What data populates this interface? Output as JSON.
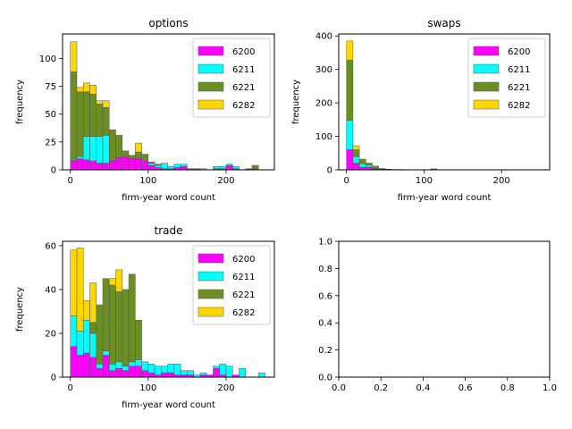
{
  "chart_data": [
    {
      "type": "bar",
      "stacked": true,
      "title": "options",
      "xlabel": "firm-year word count",
      "ylabel": "frequency",
      "xlim": [
        -10,
        262
      ],
      "ylim": [
        0,
        122
      ],
      "xticks": [
        0,
        100,
        200
      ],
      "yticks": [
        0,
        25,
        50,
        75,
        100
      ],
      "bin_width": 8.33,
      "x": [
        4.2,
        12.5,
        20.8,
        29.2,
        37.5,
        45.8,
        54.2,
        62.5,
        70.8,
        79.2,
        87.5,
        95.8,
        104.2,
        112.5,
        120.8,
        129.2,
        137.5,
        145.8,
        154.2,
        162.5,
        170.8,
        179.2,
        187.5,
        195.8,
        204.2,
        212.5,
        220.8,
        229.2,
        237.5,
        245.8
      ],
      "series": [
        {
          "name": "6200",
          "color": "#ff00ff",
          "values": [
            8,
            10,
            9,
            8,
            6,
            6,
            8,
            11,
            12,
            10,
            10,
            8,
            4,
            2,
            1,
            1,
            2,
            3,
            1,
            1,
            0,
            0,
            1,
            1,
            4,
            1,
            0,
            1,
            1,
            0
          ]
        },
        {
          "name": "6211",
          "color": "#00ffff",
          "values": [
            0,
            2,
            21,
            22,
            24,
            25,
            0,
            0,
            0,
            0,
            0,
            0,
            2,
            2,
            5,
            2,
            3,
            2,
            0,
            0,
            1,
            0,
            2,
            2,
            1,
            2,
            0,
            0,
            0,
            0
          ]
        },
        {
          "name": "6221",
          "color": "#6b8e23",
          "values": [
            80,
            58,
            40,
            38,
            29,
            25,
            28,
            20,
            5,
            3,
            6,
            6,
            1,
            1,
            0,
            0,
            0,
            0,
            0,
            0,
            0,
            0,
            0,
            0,
            0,
            0,
            0,
            0,
            3,
            0
          ]
        },
        {
          "name": "6282",
          "color": "#ffd700",
          "values": [
            27,
            4,
            8,
            8,
            3,
            6,
            0,
            0,
            0,
            0,
            8,
            0,
            0,
            0,
            0,
            0,
            0,
            0,
            0,
            0,
            0,
            0,
            0,
            0,
            0,
            0,
            0,
            0,
            0,
            0
          ]
        }
      ],
      "legend": {
        "placement": "upper-right",
        "labels": [
          "6200",
          "6211",
          "6221",
          "6282"
        ]
      }
    },
    {
      "type": "bar",
      "stacked": true,
      "title": "swaps",
      "xlabel": "firm-year word count",
      "ylabel": "frequency",
      "xlim": [
        -10,
        262
      ],
      "ylim": [
        0,
        406
      ],
      "xticks": [
        0,
        100,
        200
      ],
      "yticks": [
        0,
        100,
        200,
        300,
        400
      ],
      "bin_width": 8.33,
      "x": [
        4.2,
        12.5,
        20.8,
        29.2,
        37.5,
        45.8,
        54.2,
        62.5,
        70.8,
        79.2,
        87.5,
        95.8,
        104.2,
        112.5,
        120.8,
        129.2,
        137.5,
        145.8,
        154.2,
        162.5,
        170.8,
        179.2,
        187.5,
        195.8,
        204.2,
        212.5,
        220.8,
        229.2,
        237.5,
        245.8
      ],
      "series": [
        {
          "name": "6200",
          "color": "#ff00ff",
          "values": [
            60,
            20,
            8,
            8,
            3,
            0,
            0,
            0,
            0,
            0,
            0,
            0,
            0,
            0,
            0,
            0,
            0,
            0,
            0,
            0,
            0,
            0,
            0,
            0,
            0,
            0,
            0,
            0,
            0,
            0
          ]
        },
        {
          "name": "6211",
          "color": "#00ffff",
          "values": [
            88,
            20,
            10,
            6,
            2,
            2,
            0,
            0,
            0,
            0,
            0,
            0,
            0,
            0,
            0,
            0,
            0,
            0,
            0,
            0,
            0,
            0,
            0,
            0,
            0,
            0,
            0,
            0,
            0,
            0
          ]
        },
        {
          "name": "6221",
          "color": "#6b8e23",
          "values": [
            180,
            20,
            12,
            6,
            6,
            2,
            2,
            1,
            1,
            0,
            0,
            0,
            0,
            3,
            0,
            0,
            0,
            0,
            0,
            0,
            0,
            0,
            0,
            0,
            0,
            0,
            0,
            0,
            0,
            0
          ]
        },
        {
          "name": "6282",
          "color": "#ffd700",
          "values": [
            57,
            12,
            2,
            0,
            0,
            0,
            0,
            0,
            0,
            0,
            0,
            0,
            0,
            0,
            0,
            0,
            0,
            0,
            0,
            0,
            0,
            0,
            0,
            0,
            0,
            0,
            0,
            0,
            0,
            0
          ]
        }
      ],
      "legend": {
        "placement": "upper-right",
        "labels": [
          "6200",
          "6211",
          "6221",
          "6282"
        ]
      }
    },
    {
      "type": "bar",
      "stacked": true,
      "title": "trade",
      "xlabel": "firm-year word count",
      "ylabel": "frequency",
      "xlim": [
        -10,
        262
      ],
      "ylim": [
        0,
        62
      ],
      "xticks": [
        0,
        100,
        200
      ],
      "yticks": [
        0,
        20,
        40,
        60
      ],
      "bin_width": 8.33,
      "x": [
        4.2,
        12.5,
        20.8,
        29.2,
        37.5,
        45.8,
        54.2,
        62.5,
        70.8,
        79.2,
        87.5,
        95.8,
        104.2,
        112.5,
        120.8,
        129.2,
        137.5,
        145.8,
        154.2,
        162.5,
        170.8,
        179.2,
        187.5,
        195.8,
        204.2,
        212.5,
        220.8,
        229.2,
        237.5,
        245.8
      ],
      "series": [
        {
          "name": "6200",
          "color": "#ff00ff",
          "values": [
            14,
            10,
            11,
            9,
            4,
            10,
            3,
            4,
            3,
            5,
            5,
            3,
            2,
            1,
            2,
            2,
            1,
            1,
            1,
            0,
            1,
            1,
            4,
            1,
            0,
            1,
            0,
            0,
            0,
            0
          ]
        },
        {
          "name": "6211",
          "color": "#00ffff",
          "values": [
            14,
            11,
            15,
            11,
            2,
            2,
            3,
            3,
            2,
            2,
            3,
            4,
            4,
            4,
            3,
            4,
            5,
            2,
            2,
            1,
            1,
            0,
            1,
            5,
            5,
            0,
            4,
            0,
            0,
            2
          ]
        },
        {
          "name": "6221",
          "color": "#6b8e23",
          "values": [
            0,
            0,
            0,
            5,
            27,
            33,
            36,
            32,
            35,
            40,
            18,
            0,
            0,
            0,
            0,
            0,
            0,
            0,
            0,
            0,
            0,
            0,
            0,
            0,
            0,
            0,
            0,
            0,
            0,
            0
          ]
        },
        {
          "name": "6282",
          "color": "#ffd700",
          "values": [
            30,
            38,
            9,
            18,
            0,
            0,
            3,
            10,
            0,
            0,
            0,
            0,
            0,
            0,
            0,
            0,
            0,
            0,
            0,
            0,
            0,
            0,
            0,
            0,
            0,
            0,
            0,
            0,
            0,
            0
          ]
        }
      ],
      "legend": {
        "placement": "upper-right",
        "labels": [
          "6200",
          "6211",
          "6221",
          "6282"
        ]
      }
    },
    {
      "type": "empty",
      "title": "",
      "xlabel": "",
      "ylabel": "",
      "xlim": [
        0,
        1
      ],
      "ylim": [
        0,
        1
      ],
      "xticks": [
        "0.0",
        "0.2",
        "0.4",
        "0.6",
        "0.8",
        "1.0"
      ],
      "yticks": [
        "0.0",
        "0.2",
        "0.4",
        "0.6",
        "0.8",
        "1.0"
      ]
    }
  ]
}
